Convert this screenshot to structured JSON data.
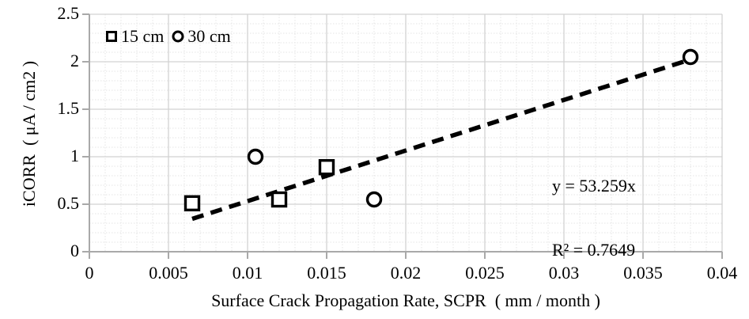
{
  "chart_data": {
    "type": "scatter",
    "title": "",
    "xlabel": "Surface Crack Propagation Rate, SCPR  ( mm / month )",
    "ylabel": "iCORR  ( μA / cm2 )",
    "xlim": [
      0,
      0.04
    ],
    "ylim": [
      0,
      2.5
    ],
    "x_ticks": [
      0,
      0.005,
      0.01,
      0.015,
      0.02,
      0.025,
      0.03,
      0.035,
      0.04
    ],
    "x_tick_labels": [
      "0",
      "0.005",
      "0.01",
      "0.015",
      "0.02",
      "0.025",
      "0.03",
      "0.035",
      "0.04"
    ],
    "y_ticks": [
      0,
      0.5,
      1,
      1.5,
      2,
      2.5
    ],
    "y_tick_labels": [
      "0",
      "0.5",
      "1",
      "1.5",
      "2",
      "2.5"
    ],
    "x_minor_step": 0.001,
    "y_minor_step": 0.1,
    "grid": "major and minor gridlines on",
    "legend_position": "inside top-left",
    "series": [
      {
        "name": "15 cm",
        "marker": "square",
        "points": [
          [
            0.0065,
            0.51
          ],
          [
            0.012,
            0.55
          ],
          [
            0.015,
            0.89
          ]
        ]
      },
      {
        "name": "30 cm",
        "marker": "circle",
        "points": [
          [
            0.0105,
            1.0
          ],
          [
            0.018,
            0.55
          ],
          [
            0.038,
            2.05
          ]
        ]
      }
    ],
    "trendline": {
      "type": "linear",
      "slope": 53.259,
      "x_start": 0.0065,
      "x_end": 0.038,
      "style": "dashed",
      "equation": "y = 53.259x",
      "r_squared": "R² = 0.7649"
    }
  },
  "colors": {
    "background": "#ffffff",
    "text": "#000000",
    "marker": "#000000",
    "marker_fill": "#ffffff",
    "trendline": "#000000",
    "major_grid": "#d2d2d2",
    "minor_grid": "#e4e4e4",
    "axis": "#a9a9a9"
  }
}
